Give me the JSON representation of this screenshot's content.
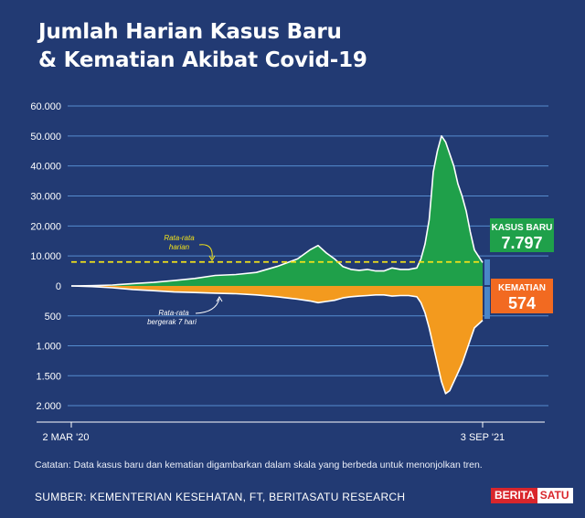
{
  "title_lines": [
    "Jumlah Harian Kasus Baru",
    "& Kematian Akibat Covid-19"
  ],
  "colors": {
    "background": "#223a73",
    "cases": "#1fa04a",
    "deaths": "#f39a1e",
    "average_line": "#f2e21a",
    "smooth_line": "#ffffff",
    "gridline": "#5f9be0",
    "cases_badge": "#1fa04a",
    "deaths_badge": "#f26a21"
  },
  "chart_data": {
    "type": "area",
    "x_start_label": "2 MAR '20",
    "x_end_label": "3 SEP '21",
    "cases_axis": {
      "range": [
        0,
        60000
      ],
      "ticks": [
        0,
        10000,
        20000,
        30000,
        40000,
        50000,
        60000
      ],
      "tick_labels": [
        "0",
        "10.000",
        "20.000",
        "30.000",
        "40.000",
        "50.000",
        "60.000"
      ]
    },
    "deaths_axis": {
      "range": [
        0,
        2000
      ],
      "ticks": [
        500,
        1000,
        1500,
        2000
      ],
      "tick_labels": [
        "500",
        "1.000",
        "1.500",
        "2.000"
      ]
    },
    "grid": true,
    "series": [
      {
        "name": "KASUS BARU",
        "latest_label": "7.797",
        "x_frac": [
          0,
          0.05,
          0.1,
          0.15,
          0.2,
          0.25,
          0.3,
          0.35,
          0.4,
          0.45,
          0.5,
          0.55,
          0.58,
          0.6,
          0.62,
          0.64,
          0.66,
          0.68,
          0.7,
          0.72,
          0.74,
          0.76,
          0.78,
          0.8,
          0.82,
          0.84,
          0.85,
          0.86,
          0.87,
          0.875,
          0.88,
          0.89,
          0.9,
          0.91,
          0.92,
          0.93,
          0.94,
          0.95,
          0.96,
          0.97,
          0.98,
          1.0
        ],
        "values": [
          0,
          100,
          300,
          800,
          1200,
          1800,
          2500,
          3500,
          3800,
          4500,
          6500,
          9000,
          12000,
          13500,
          11000,
          9000,
          6500,
          5500,
          5200,
          5500,
          5000,
          5000,
          6000,
          5500,
          5500,
          6000,
          9000,
          14000,
          22000,
          30000,
          38000,
          45000,
          50000,
          48000,
          44000,
          40000,
          34000,
          30000,
          25000,
          18000,
          12000,
          7797
        ]
      },
      {
        "name": "KEMATIAN",
        "latest_label": "574",
        "x_frac": [
          0,
          0.05,
          0.1,
          0.15,
          0.2,
          0.25,
          0.3,
          0.35,
          0.4,
          0.45,
          0.5,
          0.55,
          0.58,
          0.6,
          0.62,
          0.64,
          0.66,
          0.68,
          0.7,
          0.72,
          0.74,
          0.76,
          0.78,
          0.8,
          0.82,
          0.84,
          0.85,
          0.86,
          0.87,
          0.88,
          0.89,
          0.9,
          0.91,
          0.92,
          0.93,
          0.94,
          0.95,
          0.96,
          0.97,
          0.98,
          1.0
        ],
        "values": [
          0,
          10,
          30,
          60,
          80,
          100,
          110,
          120,
          130,
          150,
          180,
          220,
          250,
          280,
          260,
          240,
          200,
          180,
          170,
          160,
          150,
          150,
          170,
          160,
          160,
          180,
          280,
          450,
          700,
          1000,
          1300,
          1600,
          1800,
          1750,
          1600,
          1450,
          1300,
          1100,
          900,
          700,
          574
        ]
      }
    ],
    "annotations": [
      {
        "text_lines": [
          "Rata-rata",
          "harian"
        ],
        "target": "KASUS BARU",
        "value": 8000
      },
      {
        "text_lines": [
          "Rata-rata",
          "bergerak 7 hari"
        ],
        "target": "KEMATIAN"
      }
    ]
  },
  "footnote": "Catatan: Data kasus baru dan kematian digambarkan dalam skala yang berbeda untuk menonjolkan tren.",
  "source": "SUMBER: KEMENTERIAN KESEHATAN, FT, BERITASATU RESEARCH",
  "logo": {
    "part1": "BERITA",
    "part2": "SATU"
  }
}
